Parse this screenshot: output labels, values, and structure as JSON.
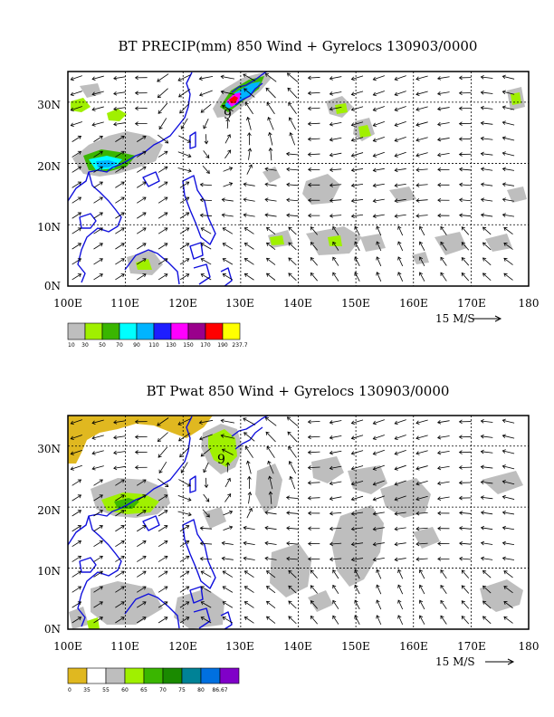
{
  "chart_data": [
    {
      "type": "heatmap",
      "title": "BT PRECIP(mm) 850 Wind + Gyrelocs 130903/0000",
      "x_ticks": [
        "100E",
        "110E",
        "120E",
        "130E",
        "140E",
        "150E",
        "160E",
        "170E",
        "180"
      ],
      "y_ticks": [
        "30N",
        "20N",
        "10N",
        "0N"
      ],
      "xlim": [
        100,
        180
      ],
      "ylim": [
        0,
        35
      ],
      "grid": true,
      "reference_vector_label": "15 M/S",
      "gyre_marker": {
        "label": "9",
        "lon": 127.5,
        "lat": 29
      },
      "colorbar": {
        "labels": [
          "10",
          "30",
          "50",
          "70",
          "90",
          "110",
          "130",
          "150",
          "170",
          "190",
          "237.7"
        ],
        "colors": [
          "#bebebe",
          "#a0f000",
          "#3ab600",
          "#00ffff",
          "#00b4ff",
          "#1e1eff",
          "#ff00ff",
          "#9a008c",
          "#ff0000",
          "#ffff00"
        ]
      },
      "shaded_regions": [
        {
          "lon": [
            101,
            118
          ],
          "lat": [
            17,
            25
          ],
          "level": "10-30"
        },
        {
          "lon": [
            103,
            112
          ],
          "lat": [
            19,
            22
          ],
          "level": "90-110"
        },
        {
          "lon": [
            125,
            135
          ],
          "lat": [
            25,
            35
          ],
          "level": "10-30"
        },
        {
          "lon": [
            126,
            130
          ],
          "lat": [
            28,
            32
          ],
          "level": "150-237.7"
        },
        {
          "lon": [
            140,
            180
          ],
          "lat": [
            3,
            20
          ],
          "level": "10-30"
        },
        {
          "lon": [
            145,
            150
          ],
          "lat": [
            24,
            28
          ],
          "level": "30-50"
        }
      ]
    },
    {
      "type": "heatmap",
      "title": "BT Pwat 850 Wind + Gyrelocs 130903/0000",
      "x_ticks": [
        "100E",
        "110E",
        "120E",
        "130E",
        "140E",
        "150E",
        "160E",
        "170E",
        "180"
      ],
      "y_ticks": [
        "30N",
        "20N",
        "10N",
        "0N"
      ],
      "xlim": [
        100,
        180
      ],
      "ylim": [
        0,
        35
      ],
      "grid": true,
      "reference_vector_label": "15 M/S",
      "gyre_marker": {
        "label": "9",
        "lon": 127.5,
        "lat": 29
      },
      "colorbar": {
        "labels": [
          "0",
          "35",
          "55",
          "60",
          "65",
          "70",
          "75",
          "80",
          "86.67"
        ],
        "colors": [
          "#e0b820",
          "#ffffff",
          "#bebebe",
          "#a0f000",
          "#3ab600",
          "#1a8a00",
          "#008296",
          "#0070e0",
          "#8000c8"
        ]
      },
      "shaded_regions": [
        {
          "lon": [
            100,
            118
          ],
          "lat": [
            30,
            35
          ],
          "level": "0-35"
        },
        {
          "lon": [
            105,
            118
          ],
          "lat": [
            17,
            24
          ],
          "level": "55-60"
        },
        {
          "lon": [
            125,
            131
          ],
          "lat": [
            25,
            32
          ],
          "level": "60-65"
        },
        {
          "lon": [
            132,
            180
          ],
          "lat": [
            0,
            28
          ],
          "level": "55-60"
        }
      ]
    }
  ]
}
